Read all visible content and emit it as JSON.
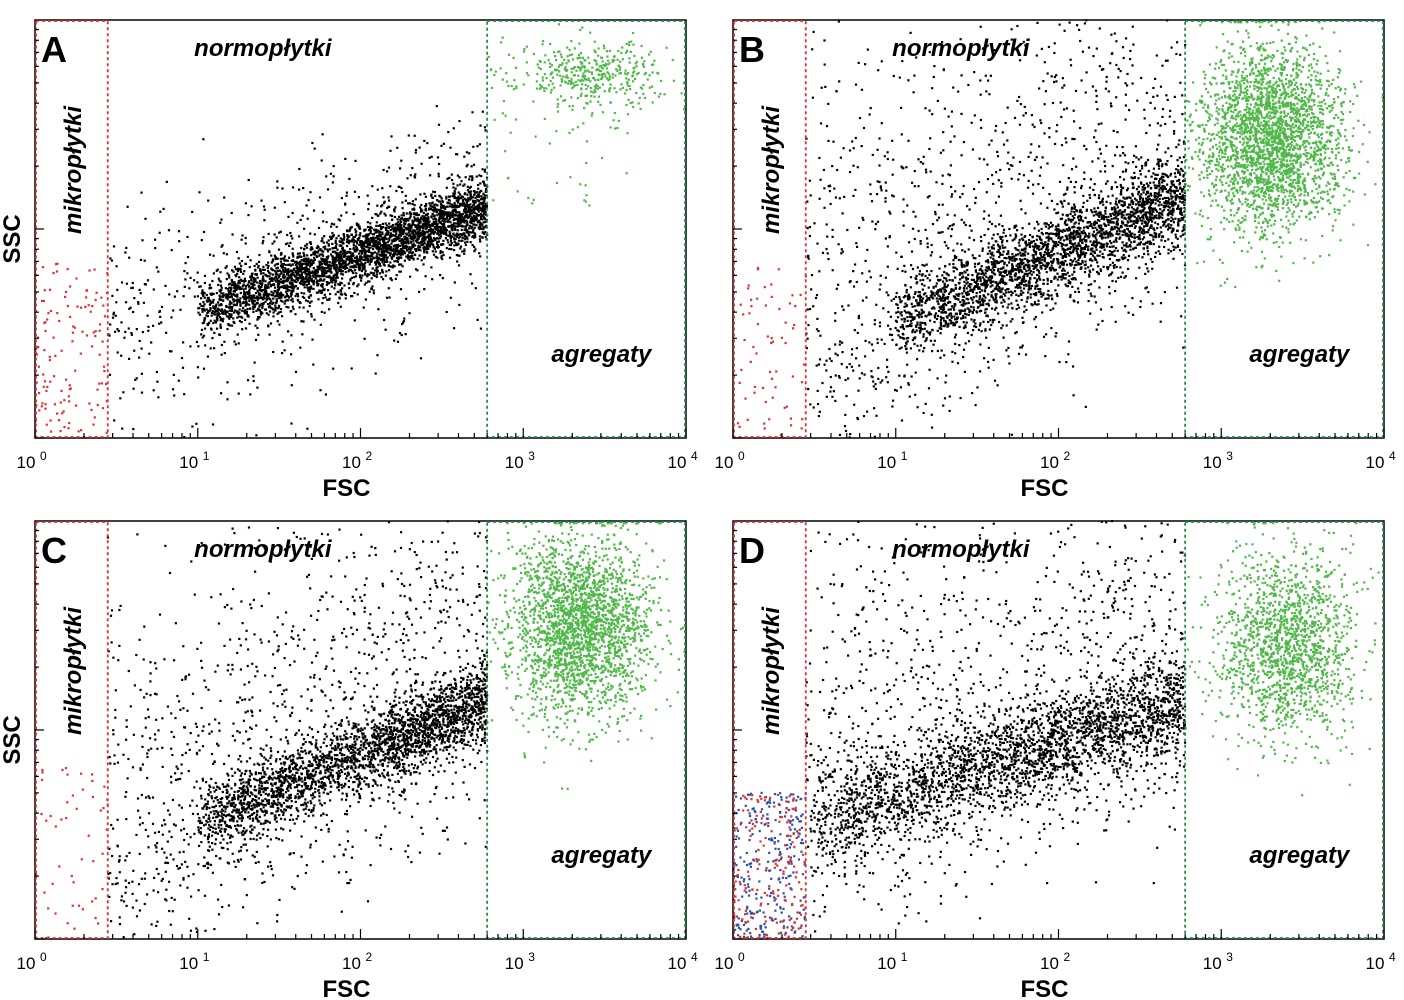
{
  "chart_data": [
    {
      "type": "scatter",
      "panel": "A",
      "xlabel": "FSC",
      "ylabel": "SSC",
      "x_scale": "log",
      "xlim": [
        1,
        10000
      ],
      "x_ticks": [
        {
          "base": "10",
          "exp": "0"
        },
        {
          "base": "10",
          "exp": "1"
        },
        {
          "base": "10",
          "exp": "2"
        },
        {
          "base": "10",
          "exp": "3"
        },
        {
          "base": "10",
          "exp": "4"
        }
      ],
      "gates": [
        {
          "label": "mikropłytki",
          "color": "#e03030",
          "fsc_range": [
            1,
            2.8
          ]
        },
        {
          "label": "normopłytki",
          "color": "#000000",
          "fsc_range": [
            2.8,
            600
          ]
        },
        {
          "label": "agregaty",
          "color": "#4fb848",
          "fsc_range": [
            600,
            10000
          ]
        }
      ],
      "population": {
        "trend_start": [
          10,
          0.3
        ],
        "trend_end": [
          600,
          0.55
        ],
        "spread": 0.035,
        "micro_density": 0.3,
        "agg_density": 0.15,
        "agg_cluster": [
          2600,
          0.87
        ]
      }
    },
    {
      "type": "scatter",
      "panel": "B",
      "xlabel": "FSC",
      "ylabel": "SSC",
      "x_scale": "log",
      "xlim": [
        1,
        10000
      ],
      "x_ticks": [
        {
          "base": "10",
          "exp": "0"
        },
        {
          "base": "10",
          "exp": "1"
        },
        {
          "base": "10",
          "exp": "2"
        },
        {
          "base": "10",
          "exp": "3"
        },
        {
          "base": "10",
          "exp": "4"
        }
      ],
      "gates": [
        {
          "label": "mikropłytki",
          "color": "#e03030",
          "fsc_range": [
            1,
            2.8
          ]
        },
        {
          "label": "normopłytki",
          "color": "#000000",
          "fsc_range": [
            2.8,
            600
          ]
        },
        {
          "label": "agregaty",
          "color": "#4fb848",
          "fsc_range": [
            600,
            10000
          ]
        }
      ],
      "population": {
        "trend_start": [
          10,
          0.28
        ],
        "trend_end": [
          600,
          0.58
        ],
        "spread": 0.05,
        "micro_density": 0.15,
        "agg_density": 1.0,
        "agg_cluster": [
          2000,
          0.72
        ]
      }
    },
    {
      "type": "scatter",
      "panel": "C",
      "xlabel": "FSC",
      "ylabel": "SSC",
      "x_scale": "log",
      "xlim": [
        1,
        10000
      ],
      "x_ticks": [
        {
          "base": "10",
          "exp": "0"
        },
        {
          "base": "10",
          "exp": "1"
        },
        {
          "base": "10",
          "exp": "2"
        },
        {
          "base": "10",
          "exp": "3"
        },
        {
          "base": "10",
          "exp": "4"
        }
      ],
      "gates": [
        {
          "label": "mikropłytki",
          "color": "#e03030",
          "fsc_range": [
            1,
            2.8
          ]
        },
        {
          "label": "normopłytki",
          "color": "#000000",
          "fsc_range": [
            2.8,
            600
          ]
        },
        {
          "label": "agregaty",
          "color": "#4fb848",
          "fsc_range": [
            600,
            10000
          ]
        }
      ],
      "population": {
        "trend_start": [
          10,
          0.28
        ],
        "trend_end": [
          600,
          0.57
        ],
        "spread": 0.045,
        "micro_density": 0.12,
        "agg_density": 0.9,
        "agg_cluster": [
          2200,
          0.75
        ]
      }
    },
    {
      "type": "scatter",
      "panel": "D",
      "xlabel": "FSC",
      "ylabel": "SSC",
      "x_scale": "log",
      "xlim": [
        1,
        10000
      ],
      "x_ticks": [
        {
          "base": "10",
          "exp": "0"
        },
        {
          "base": "10",
          "exp": "1"
        },
        {
          "base": "10",
          "exp": "2"
        },
        {
          "base": "10",
          "exp": "3"
        },
        {
          "base": "10",
          "exp": "4"
        }
      ],
      "gates": [
        {
          "label": "mikropłytki",
          "color": "#e03030",
          "fsc_range": [
            1,
            2.8
          ]
        },
        {
          "label": "normopłytki",
          "color": "#000000",
          "fsc_range": [
            2.8,
            600
          ]
        },
        {
          "label": "agregaty",
          "color": "#4fb848",
          "fsc_range": [
            600,
            10000
          ]
        }
      ],
      "population": {
        "trend_start": [
          3,
          0.28
        ],
        "trend_end": [
          600,
          0.57
        ],
        "spread": 0.06,
        "micro_density": 1.0,
        "agg_density": 0.6,
        "agg_cluster": [
          2500,
          0.7
        ]
      }
    }
  ],
  "colors": {
    "micro": "#e03030",
    "normo": "#000000",
    "agg": "#4fb848",
    "micro_alt": "#2b4fa8",
    "axis": "#000000"
  }
}
